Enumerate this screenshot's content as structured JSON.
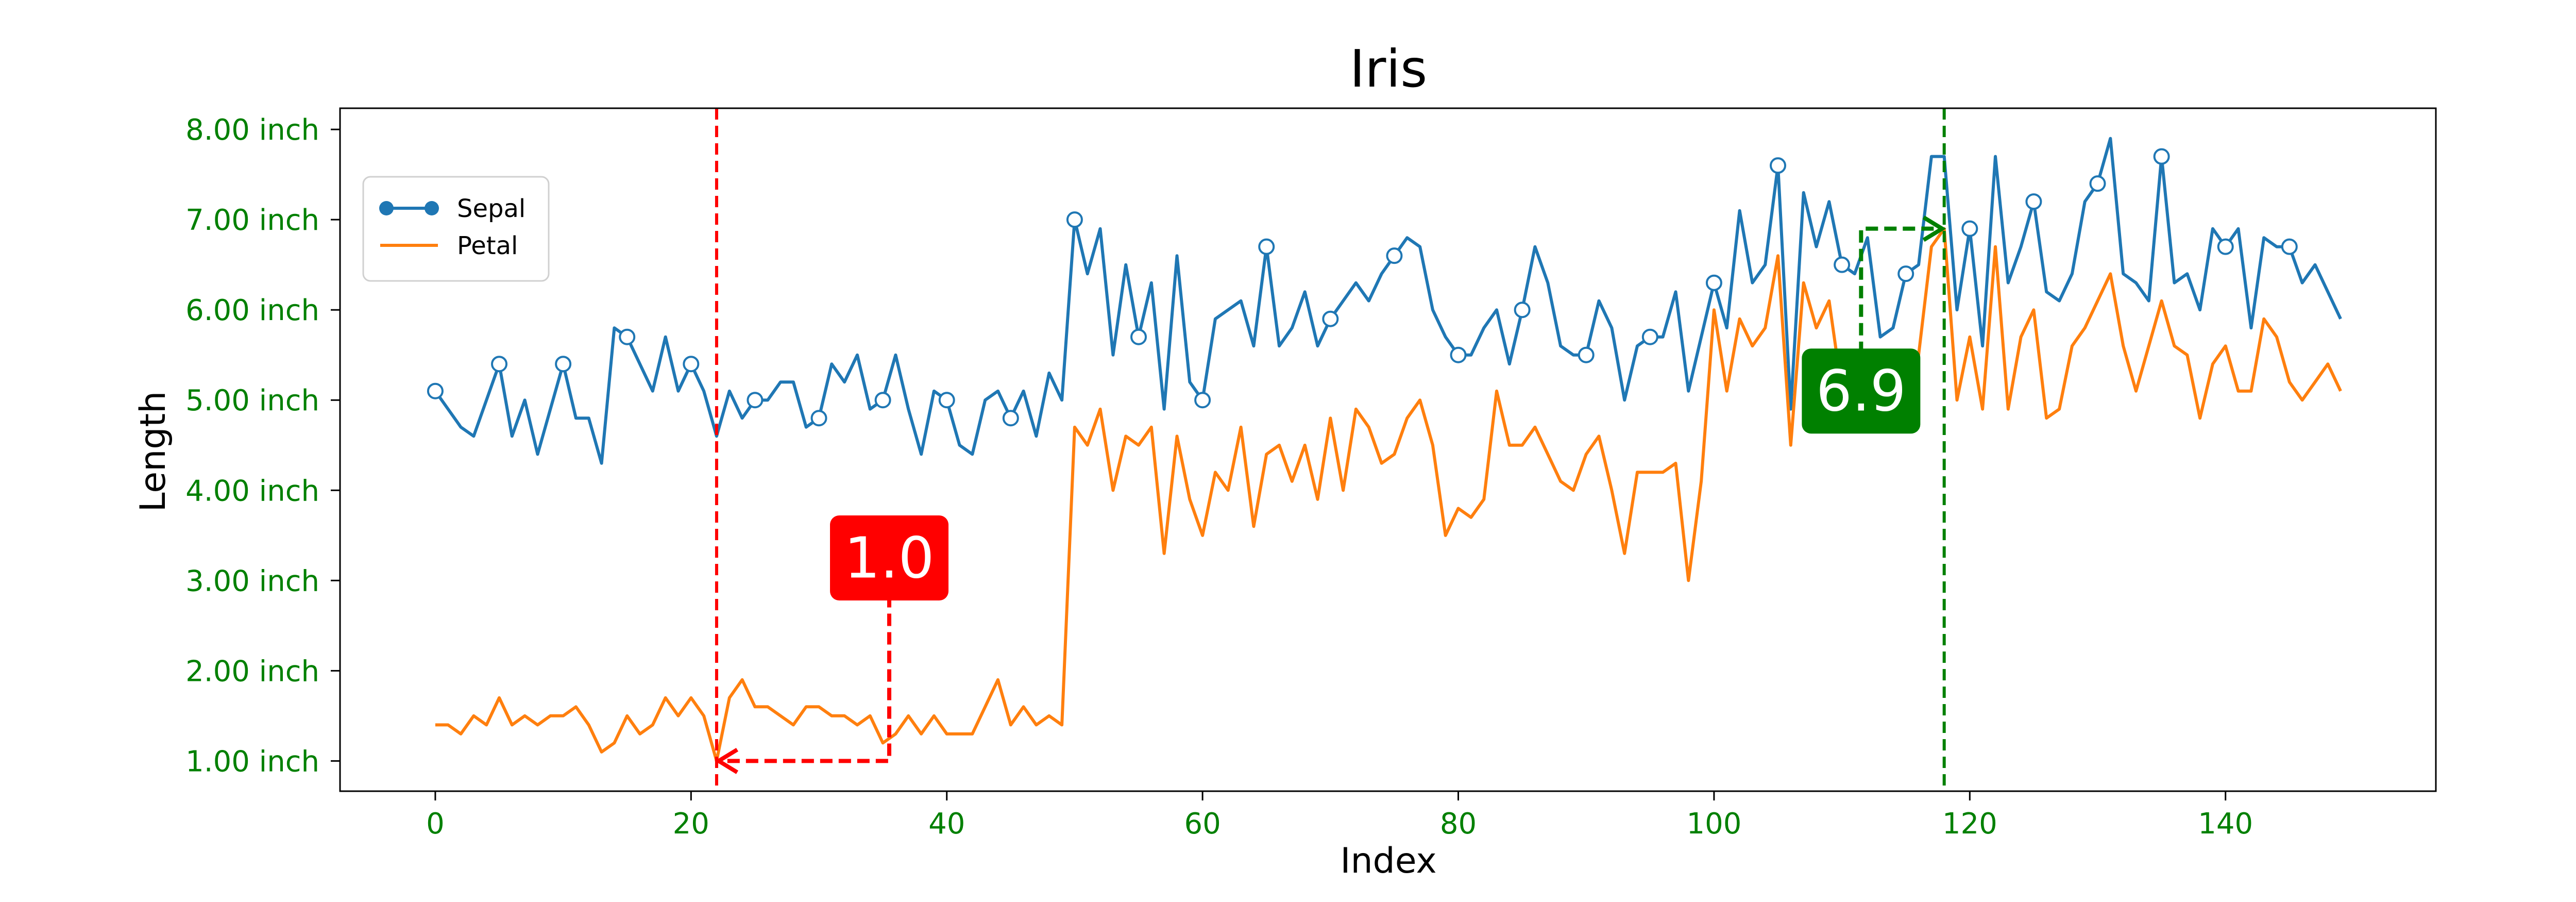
{
  "chart_data": {
    "type": "line",
    "title": "Iris",
    "xlabel": "Index",
    "ylabel": "Length",
    "xlim": [
      -7.45,
      156.45
    ],
    "ylim": [
      0.665,
      8.235
    ],
    "xticks": [
      0,
      20,
      40,
      60,
      80,
      100,
      120,
      140
    ],
    "yticks": [
      1,
      2,
      3,
      4,
      5,
      6,
      7,
      8
    ],
    "ytick_suffix": " inch",
    "tick_color": "#008000",
    "grid": false,
    "legend": {
      "placement": "upper-left",
      "entries": [
        "Sepal",
        "Petal"
      ]
    },
    "marker_every": 5,
    "series": [
      {
        "name": "Sepal",
        "color": "#1f77b4",
        "marker": "circle-hollow",
        "values": [
          5.1,
          4.9,
          4.7,
          4.6,
          5.0,
          5.4,
          4.6,
          5.0,
          4.4,
          4.9,
          5.4,
          4.8,
          4.8,
          4.3,
          5.8,
          5.7,
          5.4,
          5.1,
          5.7,
          5.1,
          5.4,
          5.1,
          4.6,
          5.1,
          4.8,
          5.0,
          5.0,
          5.2,
          5.2,
          4.7,
          4.8,
          5.4,
          5.2,
          5.5,
          4.9,
          5.0,
          5.5,
          4.9,
          4.4,
          5.1,
          5.0,
          4.5,
          4.4,
          5.0,
          5.1,
          4.8,
          5.1,
          4.6,
          5.3,
          5.0,
          7.0,
          6.4,
          6.9,
          5.5,
          6.5,
          5.7,
          6.3,
          4.9,
          6.6,
          5.2,
          5.0,
          5.9,
          6.0,
          6.1,
          5.6,
          6.7,
          5.6,
          5.8,
          6.2,
          5.6,
          5.9,
          6.1,
          6.3,
          6.1,
          6.4,
          6.6,
          6.8,
          6.7,
          6.0,
          5.7,
          5.5,
          5.5,
          5.8,
          6.0,
          5.4,
          6.0,
          6.7,
          6.3,
          5.6,
          5.5,
          5.5,
          6.1,
          5.8,
          5.0,
          5.6,
          5.7,
          5.7,
          6.2,
          5.1,
          5.7,
          6.3,
          5.8,
          7.1,
          6.3,
          6.5,
          7.6,
          4.9,
          7.3,
          6.7,
          7.2,
          6.5,
          6.4,
          6.8,
          5.7,
          5.8,
          6.4,
          6.5,
          7.7,
          7.7,
          6.0,
          6.9,
          5.6,
          7.7,
          6.3,
          6.7,
          7.2,
          6.2,
          6.1,
          6.4,
          7.2,
          7.4,
          7.9,
          6.4,
          6.3,
          6.1,
          7.7,
          6.3,
          6.4,
          6.0,
          6.9,
          6.7,
          6.9,
          5.8,
          6.8,
          6.7,
          6.7,
          6.3,
          6.5,
          6.2,
          5.9
        ]
      },
      {
        "name": "Petal",
        "color": "#ff7f0e",
        "marker": "none",
        "values": [
          1.4,
          1.4,
          1.3,
          1.5,
          1.4,
          1.7,
          1.4,
          1.5,
          1.4,
          1.5,
          1.5,
          1.6,
          1.4,
          1.1,
          1.2,
          1.5,
          1.3,
          1.4,
          1.7,
          1.5,
          1.7,
          1.5,
          1.0,
          1.7,
          1.9,
          1.6,
          1.6,
          1.5,
          1.4,
          1.6,
          1.6,
          1.5,
          1.5,
          1.4,
          1.5,
          1.2,
          1.3,
          1.5,
          1.3,
          1.5,
          1.3,
          1.3,
          1.3,
          1.6,
          1.9,
          1.4,
          1.6,
          1.4,
          1.5,
          1.4,
          4.7,
          4.5,
          4.9,
          4.0,
          4.6,
          4.5,
          4.7,
          3.3,
          4.6,
          3.9,
          3.5,
          4.2,
          4.0,
          4.7,
          3.6,
          4.4,
          4.5,
          4.1,
          4.5,
          3.9,
          4.8,
          4.0,
          4.9,
          4.7,
          4.3,
          4.4,
          4.8,
          5.0,
          4.5,
          3.5,
          3.8,
          3.7,
          3.9,
          5.1,
          4.5,
          4.5,
          4.7,
          4.4,
          4.1,
          4.0,
          4.4,
          4.6,
          4.0,
          3.3,
          4.2,
          4.2,
          4.2,
          4.3,
          3.0,
          4.1,
          6.0,
          5.1,
          5.9,
          5.6,
          5.8,
          6.6,
          4.5,
          6.3,
          5.8,
          6.1,
          5.1,
          5.3,
          5.5,
          5.0,
          5.1,
          5.3,
          5.5,
          6.7,
          6.9,
          5.0,
          5.7,
          4.9,
          6.7,
          4.9,
          5.7,
          6.0,
          4.8,
          4.9,
          5.6,
          5.8,
          6.1,
          6.4,
          5.6,
          5.1,
          5.6,
          6.1,
          5.6,
          5.5,
          4.8,
          5.4,
          5.6,
          5.1,
          5.1,
          5.9,
          5.7,
          5.2,
          5.0,
          5.2,
          5.4,
          5.1
        ]
      }
    ],
    "annotations": [
      {
        "label": "1.0",
        "series": "Petal",
        "x": 22,
        "y": 1.0,
        "color": "#ff0000",
        "label_x": 35.5,
        "label_y": 3.25,
        "vline_x": 22
      },
      {
        "label": "6.9",
        "series": "Petal",
        "x": 118,
        "y": 6.9,
        "color": "#008000",
        "label_x": 111.5,
        "label_y": 5.1,
        "vline_x": 118
      }
    ]
  }
}
